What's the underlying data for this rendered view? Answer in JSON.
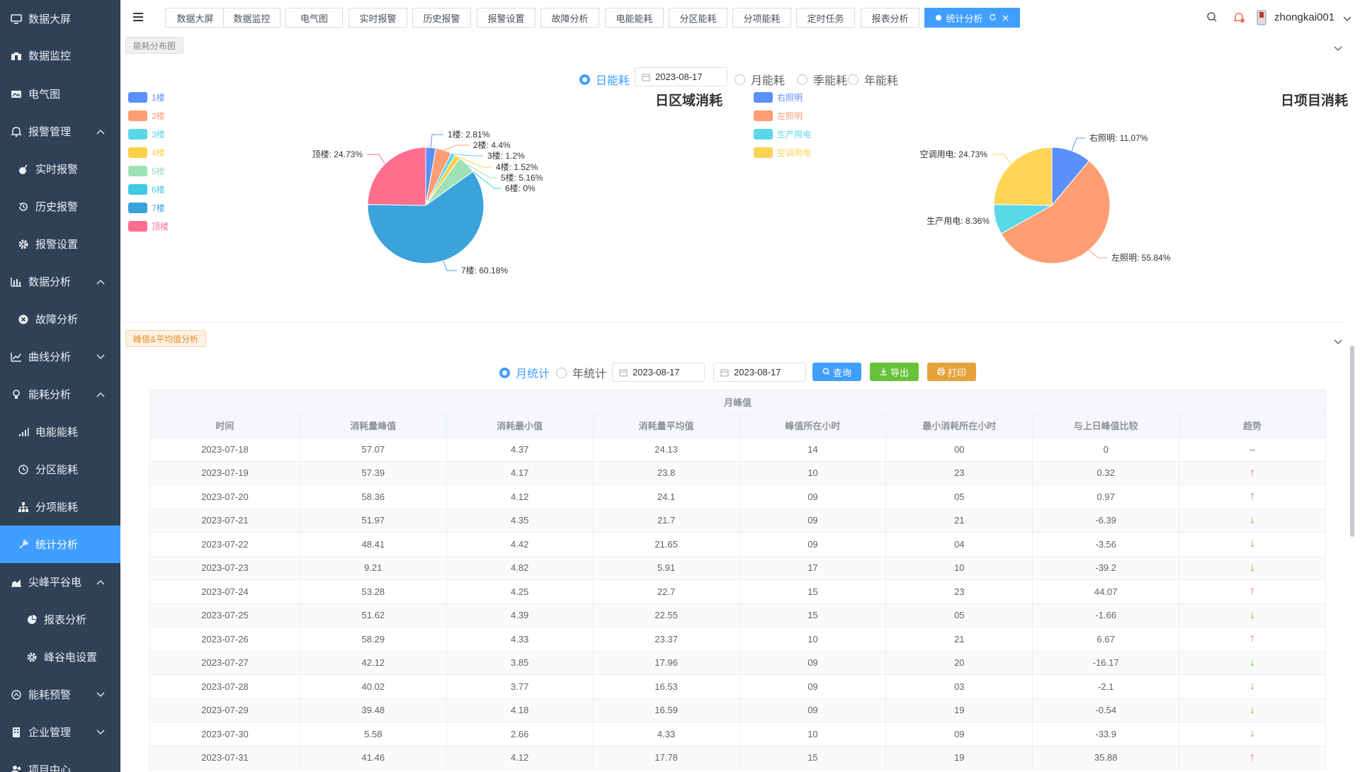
{
  "sidebar": {
    "items": [
      {
        "label": "数据大屏",
        "icon": "monitor-icon"
      },
      {
        "label": "数据监控",
        "icon": "binoculars-icon"
      },
      {
        "label": "电气图",
        "icon": "image-icon"
      },
      {
        "label": "报警管理",
        "icon": "bell-icon"
      },
      {
        "label": "实时报警",
        "icon": "bomb-icon"
      },
      {
        "label": "历史报警",
        "icon": "history-icon"
      },
      {
        "label": "报警设置",
        "icon": "gear-icon"
      },
      {
        "label": "数据分析",
        "icon": "bar-chart-icon"
      },
      {
        "label": "故障分析",
        "icon": "close-circle-icon"
      },
      {
        "label": "曲线分析",
        "icon": "line-chart-icon"
      },
      {
        "label": "能耗分析",
        "icon": "bulb-icon"
      },
      {
        "label": "电能能耗",
        "icon": "signal-icon"
      },
      {
        "label": "分区能耗",
        "icon": "clock-icon"
      },
      {
        "label": "分项能耗",
        "icon": "sitemap-icon"
      },
      {
        "label": "统计分析",
        "icon": "tools-icon"
      },
      {
        "label": "尖峰平谷电",
        "icon": "area-chart-icon"
      },
      {
        "label": "报表分析",
        "icon": "pie-icon"
      },
      {
        "label": "峰谷电设置",
        "icon": "gear-icon"
      },
      {
        "label": "能耗预警",
        "icon": "warning-icon"
      },
      {
        "label": "企业管理",
        "icon": "building-icon"
      },
      {
        "label": "项目中心",
        "icon": "users-icon"
      }
    ]
  },
  "tabs": [
    "数据大屏",
    "数据监控",
    "电气图",
    "实时报警",
    "历史报警",
    "报警设置",
    "故障分析",
    "电能能耗",
    "分区能耗",
    "分项能耗",
    "定时任务",
    "报表分析",
    "统计分析"
  ],
  "user": {
    "name": "zhongkai001"
  },
  "section1": {
    "tag": "能耗分布图",
    "radios": [
      "日能耗",
      "月能耗",
      "季能耗",
      "年能耗"
    ],
    "selected": "日能耗",
    "date": "2023-08-17"
  },
  "section2": {
    "tag": "峰值&平均值分析",
    "radios": [
      "月统计",
      "年统计"
    ],
    "selected": "月统计",
    "date_start": "2023-08-17",
    "date_end": "2023-08-17",
    "buttons": {
      "query": "查询",
      "export": "导出",
      "print": "打印"
    }
  },
  "colors": {
    "accent": "#409eff",
    "sidebar_bg": "#304156",
    "up": "#f56c6c",
    "down": "#67c23a",
    "export": "#67c23a",
    "print": "#e6a23c"
  },
  "chart_data": [
    {
      "type": "pie",
      "title": "日区域消耗",
      "legend_position": "left",
      "labels": [
        "1楼",
        "2楼",
        "3楼",
        "4楼",
        "5楼",
        "6楼",
        "7楼",
        "顶楼"
      ],
      "values": [
        2.81,
        4.4,
        1.2,
        1.52,
        5.16,
        0,
        60.18,
        24.73
      ],
      "label_texts": [
        "1楼: 2.81%",
        "2楼: 4.4%",
        "3楼: 1.2%",
        "4楼: 1.52%",
        "5楼: 5.16%",
        "6楼: 0%",
        "7楼: 60.18%",
        "顶楼: 24.73%"
      ],
      "colors": [
        "#5b8ff9",
        "#ff9d74",
        "#5ad8e6",
        "#ffcf47",
        "#9fe0b4",
        "#3fcbe3",
        "#3ba3dc",
        "#ff6e8c"
      ]
    },
    {
      "type": "pie",
      "title": "日项目消耗",
      "legend_position": "left",
      "labels": [
        "右照明",
        "左照明",
        "生产用电",
        "空调用电"
      ],
      "values": [
        11.07,
        55.84,
        8.36,
        24.73
      ],
      "label_texts": [
        "右照明: 11.07%",
        "左照明: 55.84%",
        "生产用电: 8.36%",
        "空调用电: 24.73%"
      ],
      "colors": [
        "#5b8ff9",
        "#ff9d74",
        "#5ad8e6",
        "#ffd454"
      ]
    }
  ],
  "table": {
    "group_header": "月峰值",
    "columns": [
      "时间",
      "消耗量峰值",
      "消耗最小值",
      "消耗量平均值",
      "峰值所在小时",
      "最小消耗所在小时",
      "与上日峰值比较",
      "趋势"
    ],
    "rows": [
      [
        "2023-07-18",
        "57.07",
        "4.37",
        "24.13",
        "14",
        "00",
        "0",
        "--"
      ],
      [
        "2023-07-19",
        "57.39",
        "4.17",
        "23.8",
        "10",
        "23",
        "0.32",
        "↑"
      ],
      [
        "2023-07-20",
        "58.36",
        "4.12",
        "24.1",
        "09",
        "05",
        "0.97",
        "↑"
      ],
      [
        "2023-07-21",
        "51.97",
        "4.35",
        "21.7",
        "09",
        "21",
        "-6.39",
        "↓"
      ],
      [
        "2023-07-22",
        "48.41",
        "4.42",
        "21.65",
        "09",
        "04",
        "-3.56",
        "↓"
      ],
      [
        "2023-07-23",
        "9.21",
        "4.82",
        "5.91",
        "17",
        "10",
        "-39.2",
        "↓"
      ],
      [
        "2023-07-24",
        "53.28",
        "4.25",
        "22.7",
        "15",
        "23",
        "44.07",
        "↑"
      ],
      [
        "2023-07-25",
        "51.62",
        "4.39",
        "22.55",
        "15",
        "05",
        "-1.66",
        "↓"
      ],
      [
        "2023-07-26",
        "58.29",
        "4.33",
        "23.37",
        "10",
        "21",
        "6.67",
        "↑"
      ],
      [
        "2023-07-27",
        "42.12",
        "3.85",
        "17.96",
        "09",
        "20",
        "-16.17",
        "↓"
      ],
      [
        "2023-07-28",
        "40.02",
        "3.77",
        "16.53",
        "09",
        "03",
        "-2.1",
        "↓"
      ],
      [
        "2023-07-29",
        "39.48",
        "4.18",
        "16.59",
        "09",
        "19",
        "-0.54",
        "↓"
      ],
      [
        "2023-07-30",
        "5.58",
        "2.66",
        "4.33",
        "10",
        "09",
        "-33.9",
        "↓"
      ],
      [
        "2023-07-31",
        "41.46",
        "4.12",
        "17.78",
        "15",
        "19",
        "35.88",
        "↑"
      ]
    ]
  }
}
